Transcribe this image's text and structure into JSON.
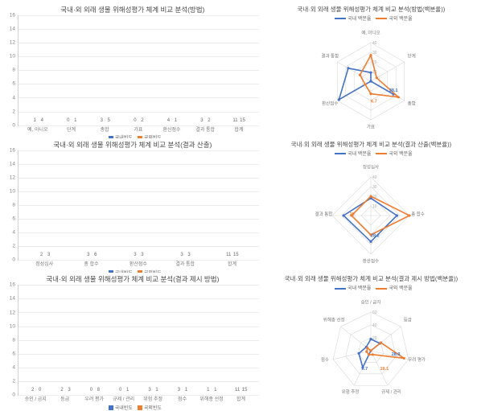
{
  "colors": {
    "series_a": "#4472c4",
    "series_b": "#ed7d31",
    "grid": "#ececec",
    "axis": "#d0d0d0",
    "text": "#666666"
  },
  "bar_legend": {
    "a": "국내빈도",
    "b": "국외빈도"
  },
  "radar_legend": {
    "a": "국내 백분율",
    "b": "국외 백분율"
  },
  "bar_charts": [
    {
      "title": "국내·외 외래 생물 위해성평가 체계 비교 분석(방법)",
      "ymax": 16,
      "ystep": 2,
      "categories": [
        "예, 아니오",
        "단계",
        "총합",
        "가표",
        "환산점수",
        "결과 통합",
        "합계"
      ],
      "series_a": [
        1,
        0,
        3,
        0,
        4,
        3,
        11
      ],
      "series_b": [
        4,
        1,
        5,
        2,
        1,
        2,
        15
      ]
    },
    {
      "title": "국내·외 외래 생물 위해성평가 체계 비교 분석(결과 산출)",
      "ymax": 16,
      "ystep": 2,
      "categories": [
        "정성심사",
        "총 합수",
        "환산점수",
        "결과 통합",
        "합계"
      ],
      "series_a": [
        2,
        3,
        3,
        3,
        11
      ],
      "series_b": [
        3,
        6,
        3,
        3,
        15
      ]
    },
    {
      "title": "국내·외 외래 생물 위해성평가 체계 비교 분석(결과 제시 방법)",
      "ymax": 16,
      "ystep": 2,
      "categories": [
        "승인 / 금지",
        "등급",
        "우려 평가",
        "규제 / 관리",
        "위험 추정",
        "점수",
        "위해종 선정",
        "합계"
      ],
      "series_a": [
        2,
        2,
        0,
        0,
        3,
        3,
        1,
        11
      ],
      "series_b": [
        0,
        3,
        8,
        1,
        1,
        1,
        1,
        15
      ]
    }
  ],
  "radar_charts": [
    {
      "title": "국내·외 외래 생물 위해성평가 체계 비교 분석(방법(백분율))",
      "axes": [
        "예, 아니오",
        "단계",
        "총합",
        "가표",
        "환산점수",
        "결과 통합"
      ],
      "max": 40,
      "rings": [
        10,
        20,
        30,
        40
      ],
      "series_a": [
        9,
        0,
        27,
        0,
        38.1,
        27
      ],
      "series_b": [
        27,
        7,
        33,
        13,
        6.7,
        13
      ],
      "axis_value_labels": [
        "38.1",
        "6.7"
      ]
    },
    {
      "title": "국내·외 외래 생물 위해성평가 체계 비교 분석(결과 산출(백분율))",
      "axes": [
        "정성심사",
        "총 합수",
        "환산점수",
        "결과 통합"
      ],
      "max": 40,
      "rings": [
        10,
        20,
        30,
        40
      ],
      "series_a": [
        18,
        27,
        27,
        28.2
      ],
      "series_b": [
        20,
        40,
        20,
        20
      ],
      "axis_value_labels": [
        "28.2",
        "20"
      ]
    },
    {
      "title": "국내·외 외래 생물 위해성평가 체계 비교 분석(결과 제시 방법(백분율))",
      "axes": [
        "승인 / 금지",
        "등급",
        "우려 평가",
        "규제 / 관리",
        "위험 추정",
        "점수",
        "위해종 선정"
      ],
      "max": 60,
      "rings": [
        20,
        40,
        60
      ],
      "series_a": [
        18,
        18,
        0,
        0,
        28.9,
        19.1,
        9
      ],
      "series_b": [
        0,
        20,
        53,
        6.7,
        6.7,
        6.7,
        6.7
      ],
      "axis_value_labels": [
        "28.9",
        "19.1",
        "6.7"
      ]
    }
  ]
}
